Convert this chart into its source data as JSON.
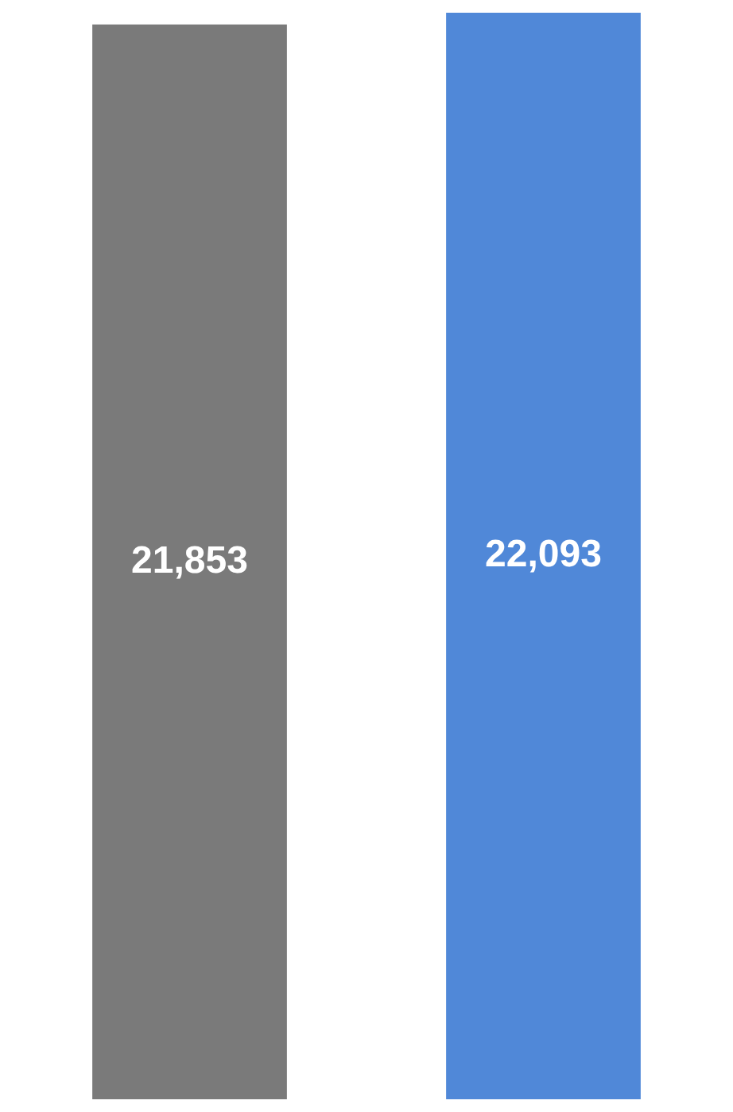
{
  "chart_data": {
    "type": "bar",
    "categories": [
      null,
      null
    ],
    "values": [
      21853,
      22093
    ],
    "value_labels": [
      "21,853",
      "22,093"
    ],
    "colors": [
      "#7a7a7a",
      "#5088d8"
    ],
    "legend": false,
    "tick_labels": false
  }
}
